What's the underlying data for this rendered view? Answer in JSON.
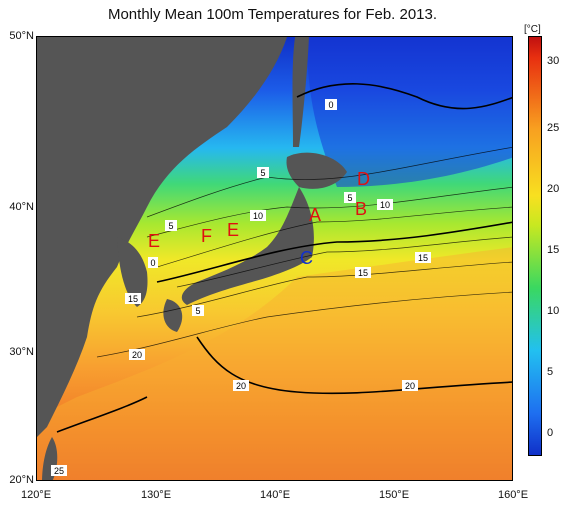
{
  "title": "Monthly Mean 100m Temperatures for Feb. 2013.",
  "colorbar": {
    "unit": "[°C]",
    "ticks": [
      "30",
      "25",
      "20",
      "15",
      "10",
      "5",
      "0"
    ]
  },
  "axes": {
    "lat_labels": [
      "50°N",
      "40°N",
      "30°N",
      "20°N"
    ],
    "lon_labels": [
      "120°E",
      "130°E",
      "140°E",
      "150°E",
      "160°E"
    ]
  },
  "regions": [
    {
      "label": "A",
      "color": "#e01010"
    },
    {
      "label": "B",
      "color": "#e01010"
    },
    {
      "label": "C",
      "color": "#1030d0"
    },
    {
      "label": "D",
      "color": "#e01010"
    },
    {
      "label": "E",
      "color": "#e01010"
    },
    {
      "label": "F",
      "color": "#e01010"
    },
    {
      "label": "E",
      "color": "#e01010"
    }
  ],
  "contour_labels": [
    "0",
    "5",
    "5",
    "10",
    "5",
    "10",
    "15",
    "15",
    "5",
    "20",
    "20",
    "25",
    "15",
    "0",
    "20"
  ],
  "colors": {
    "land": "#555555",
    "cold": "#1838d8",
    "mid": "#38c8f0",
    "warm": "#f8e020",
    "hot": "#f07820"
  }
}
